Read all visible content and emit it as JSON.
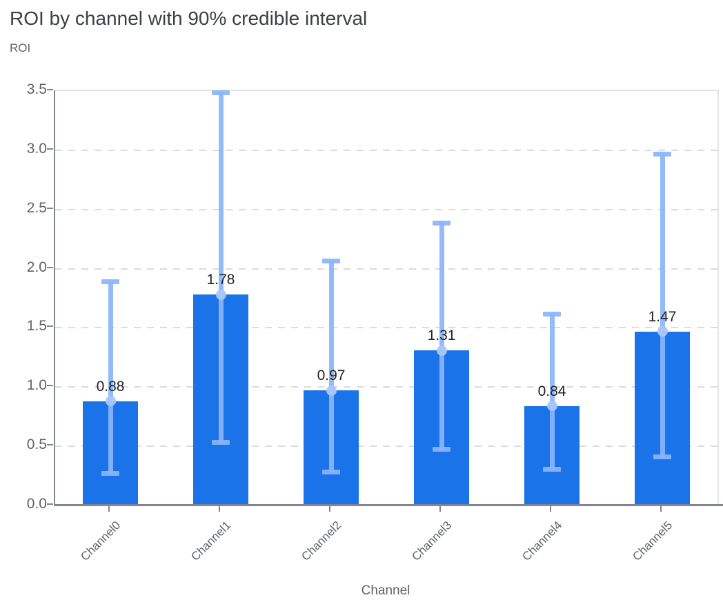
{
  "chart_data": {
    "type": "bar",
    "title": "ROI by channel with 90% credible interval",
    "ylabel": "ROI",
    "xlabel": "Channel",
    "categories": [
      "Channel0",
      "Channel1",
      "Channel2",
      "Channel3",
      "Channel4",
      "Channel5"
    ],
    "series": [
      {
        "name": "ROI",
        "values": [
          0.88,
          1.78,
          0.97,
          1.31,
          0.84,
          1.47
        ],
        "labels": [
          "0.88",
          "1.78",
          "0.97",
          "1.31",
          "0.84",
          "1.47"
        ],
        "ci_low": [
          0.27,
          0.53,
          0.28,
          0.47,
          0.3,
          0.41
        ],
        "ci_high": [
          1.89,
          3.49,
          2.07,
          2.39,
          1.62,
          2.97
        ]
      }
    ],
    "ylim": [
      0.0,
      3.5
    ],
    "ytick_labels": [
      "0.0",
      "0.5",
      "1.0",
      "1.5",
      "2.0",
      "2.5",
      "3.0",
      "3.5"
    ],
    "grid": "dashed-horizontal",
    "legend": "none",
    "colors": {
      "bar": "#1a73e8",
      "error_bar": "#8ab4f8",
      "marker": "#a8c7fa",
      "gridline": "#dadce0",
      "axis_line": "#80868b",
      "title_text": "#3c4043",
      "axis_text": "#5f6368",
      "value_label_text": "#202124"
    }
  }
}
